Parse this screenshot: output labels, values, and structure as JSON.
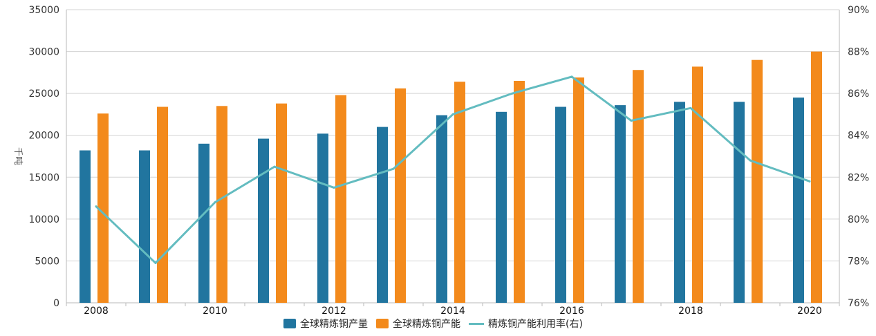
{
  "chart_data": {
    "type": "bar+line",
    "categories": [
      "2008",
      "2009",
      "2010",
      "2011",
      "2012",
      "2013",
      "2014",
      "2015",
      "2016",
      "2017",
      "2018",
      "2019",
      "2020"
    ],
    "x_tick_labels": [
      "2008",
      "",
      "2010",
      "",
      "2012",
      "",
      "2014",
      "",
      "2016",
      "",
      "2018",
      "",
      "2020"
    ],
    "ylabel": "千吨",
    "ylim": [
      0,
      35000
    ],
    "y_ticks": [
      "0",
      "5000",
      "10000",
      "15000",
      "20000",
      "25000",
      "30000",
      "35000"
    ],
    "y2lim": [
      76,
      90
    ],
    "y2_ticks": [
      "76%",
      "78%",
      "80%",
      "82%",
      "84%",
      "86%",
      "88%",
      "90%"
    ],
    "grid": true,
    "legend_position": "bottom",
    "series": [
      {
        "name": "全球精炼铜产量",
        "kind": "bar",
        "axis": "left",
        "color": "#21759f",
        "values": [
          18200,
          18200,
          19000,
          19600,
          20200,
          21000,
          22400,
          22800,
          23400,
          23600,
          24000,
          24000,
          24500
        ]
      },
      {
        "name": "全球精炼铜产能",
        "kind": "bar",
        "axis": "left",
        "color": "#f38a1c",
        "values": [
          22600,
          23400,
          23500,
          23800,
          24800,
          25600,
          26400,
          26500,
          26900,
          27800,
          28200,
          29000,
          30000
        ]
      },
      {
        "name": "精炼铜产能利用率(右)",
        "kind": "line",
        "axis": "right",
        "color": "#63bcc0",
        "values": [
          80.6,
          77.9,
          80.8,
          82.5,
          81.5,
          82.4,
          85.0,
          86.0,
          86.8,
          84.7,
          85.3,
          82.8,
          81.8
        ]
      }
    ]
  }
}
